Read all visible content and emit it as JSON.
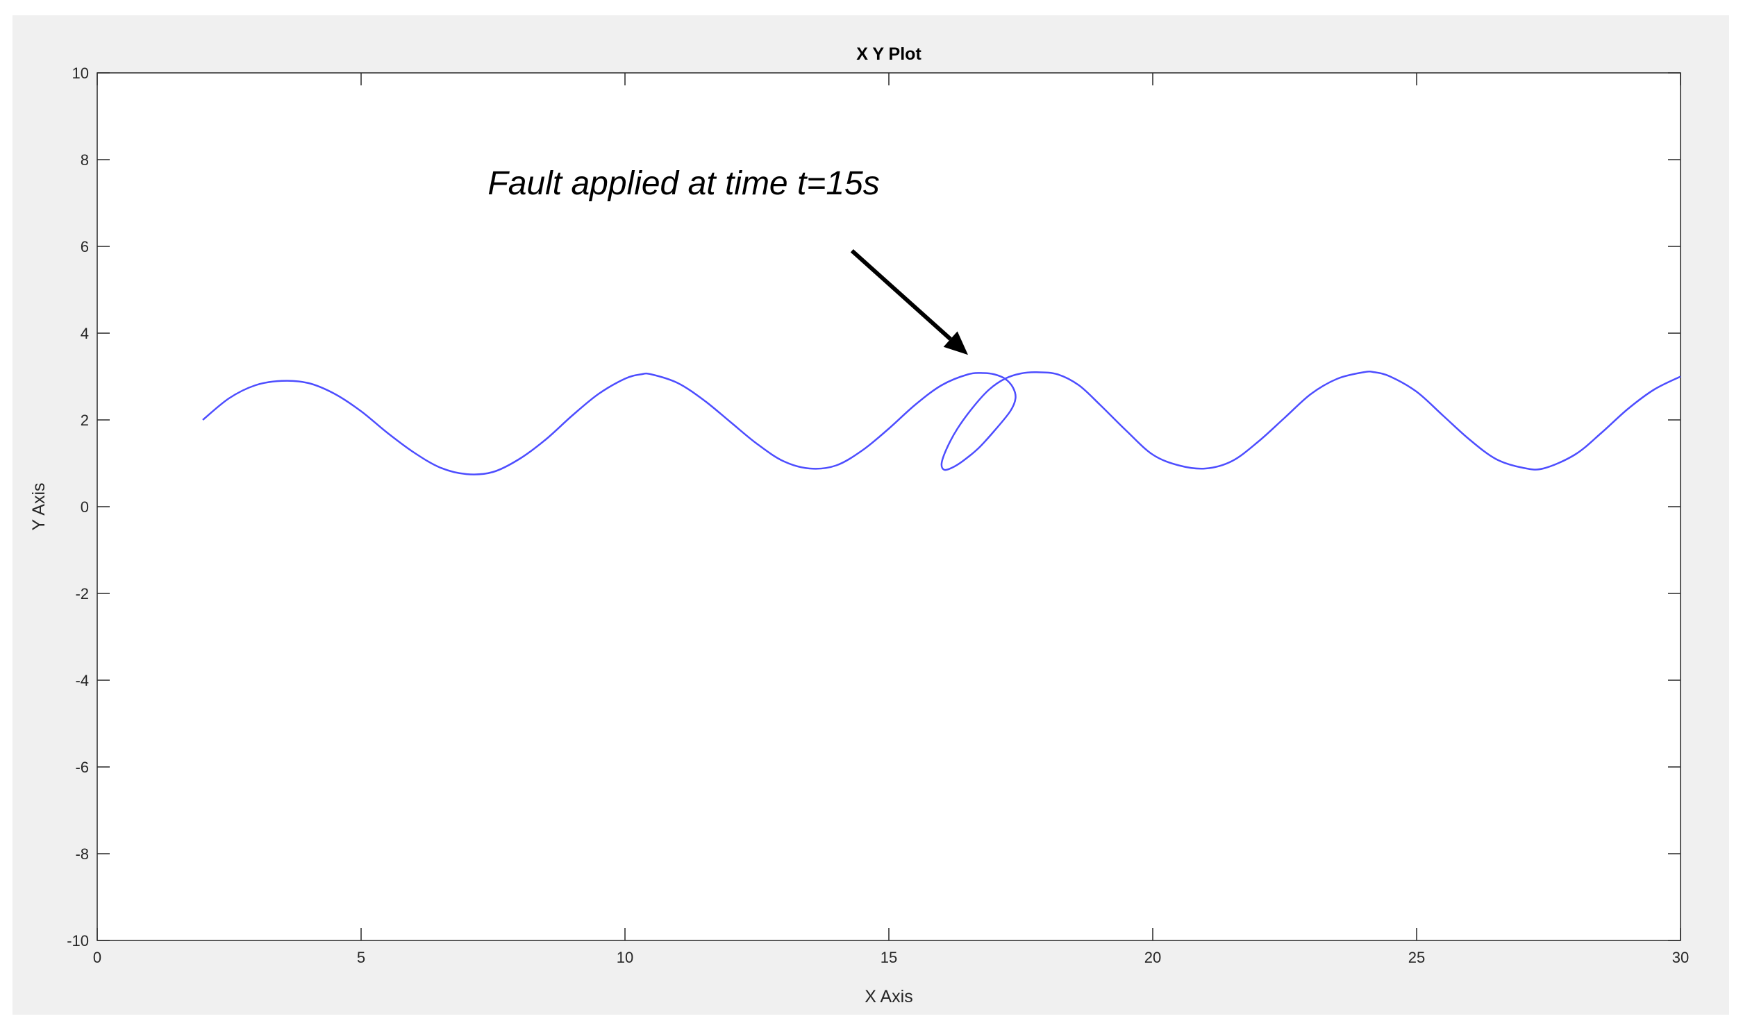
{
  "chart_data": {
    "type": "line",
    "title": "X Y Plot",
    "xlabel": "X Axis",
    "ylabel": "Y Axis",
    "xlim": [
      0,
      30
    ],
    "ylim": [
      -10,
      10
    ],
    "xticks": [
      0,
      5,
      10,
      15,
      20,
      25,
      30
    ],
    "yticks": [
      -10,
      -8,
      -6,
      -4,
      -2,
      0,
      2,
      4,
      6,
      8,
      10
    ],
    "grid": false,
    "legend": "none",
    "colors": {
      "line": "#4d4dff",
      "axes": "#262626",
      "panel": "#f0f0f0",
      "plot_bg": "#ffffff"
    },
    "series": [
      {
        "x": [
          2.0,
          2.5,
          3.0,
          3.5,
          4.0,
          4.5,
          5.0,
          5.5,
          6.0,
          6.5,
          7.0,
          7.5,
          8.0,
          8.5,
          9.0,
          9.5,
          10.0,
          10.3,
          10.5,
          11.0,
          11.5,
          12.0,
          12.5,
          13.0,
          13.5,
          14.0,
          14.5,
          15.0,
          15.5,
          16.0,
          16.5,
          16.8,
          17.0,
          17.2,
          17.35,
          17.4,
          17.3,
          17.0,
          16.7,
          16.4,
          16.2,
          16.05,
          16.0,
          16.1,
          16.3,
          16.6,
          16.9,
          17.2,
          17.5,
          17.8,
          18.2,
          18.6,
          19.0,
          19.5,
          20.0,
          20.5,
          21.0,
          21.5,
          22.0,
          22.5,
          23.0,
          23.5,
          24.0,
          24.2,
          24.5,
          25.0,
          25.5,
          26.0,
          26.5,
          27.0,
          27.4,
          28.0,
          28.5,
          29.0,
          29.5,
          30.0
        ],
        "y": [
          2.0,
          2.5,
          2.8,
          2.9,
          2.85,
          2.6,
          2.2,
          1.7,
          1.25,
          0.9,
          0.75,
          0.8,
          1.1,
          1.55,
          2.1,
          2.6,
          2.95,
          3.05,
          3.05,
          2.85,
          2.45,
          1.95,
          1.45,
          1.05,
          0.88,
          0.95,
          1.3,
          1.8,
          2.35,
          2.8,
          3.05,
          3.08,
          3.05,
          2.95,
          2.75,
          2.5,
          2.2,
          1.75,
          1.35,
          1.05,
          0.9,
          0.85,
          1.0,
          1.35,
          1.8,
          2.3,
          2.7,
          2.95,
          3.07,
          3.1,
          3.05,
          2.8,
          2.35,
          1.75,
          1.2,
          0.95,
          0.88,
          1.05,
          1.5,
          2.05,
          2.6,
          2.95,
          3.1,
          3.1,
          3.0,
          2.65,
          2.1,
          1.55,
          1.1,
          0.9,
          0.88,
          1.2,
          1.7,
          2.25,
          2.7,
          3.0
        ]
      }
    ],
    "annotation": {
      "text": "Fault applied at time t=15s",
      "text_x": 7.4,
      "text_y": 7.2,
      "arrow_from": [
        14.3,
        5.9
      ],
      "arrow_to": [
        16.5,
        3.5
      ]
    }
  }
}
